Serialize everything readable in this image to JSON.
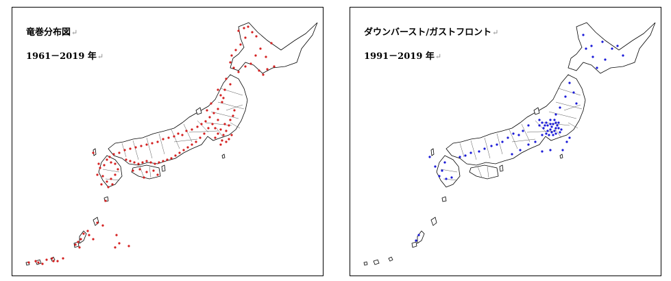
{
  "panels": [
    {
      "id": "left",
      "title": "竜巻分布図",
      "period": "1961－2019 年",
      "marker_color": "#d42020"
    },
    {
      "id": "right",
      "title": "ダウンバースト/ガストフロント",
      "period": "1991－2019 年",
      "marker_color": "#1a1ad8"
    }
  ],
  "return_mark": "↵",
  "colors": {
    "coast": "#000000",
    "prefecture_border": "#555555"
  }
}
